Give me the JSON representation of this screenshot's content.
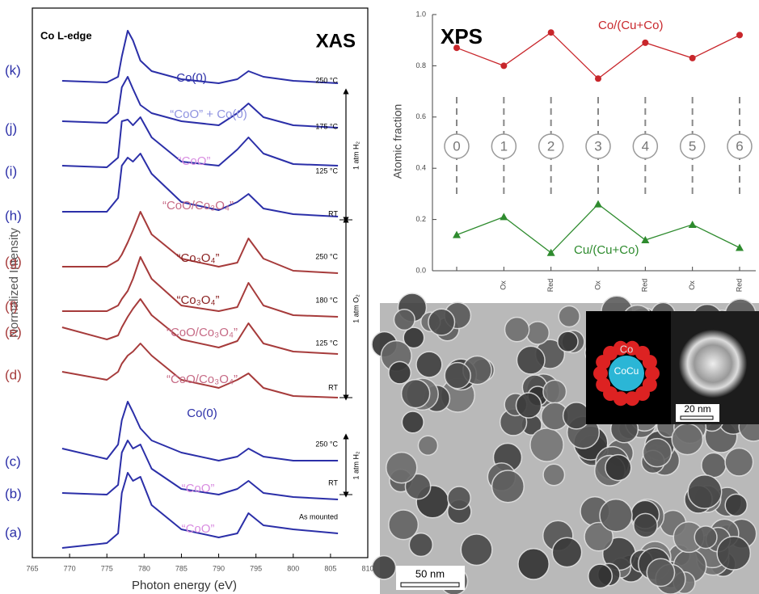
{
  "chart_data": [
    {
      "type": "line",
      "title": "XAS",
      "subtitle": "Co L-edge",
      "x_label": "Photon energy (eV)",
      "y_label": "Normalized Intensity",
      "xlim": [
        765,
        810
      ],
      "xticks": [
        765,
        770,
        775,
        780,
        785,
        790,
        795,
        800,
        805,
        810
      ],
      "ylim": [
        0,
        68
      ],
      "x": [
        769,
        775,
        776.5,
        777,
        777.8,
        778.5,
        779.5,
        781,
        785,
        790,
        792.5,
        794,
        796,
        800,
        806
      ],
      "environments": [
        "1 atm H₂",
        "1 atm O₂",
        "1 atm H₂"
      ],
      "series": [
        {
          "name": "(k)",
          "color": "#2b2fa8",
          "label": "Co(0)",
          "condition": "250 °C",
          "values": [
            59,
            58.8,
            59.5,
            62,
            65.2,
            64,
            61.5,
            60.2,
            59.2,
            58.7,
            59.2,
            60.2,
            59.5,
            59,
            58.7
          ]
        },
        {
          "name": "(j)",
          "color": "#2b2fa8",
          "label": "“CoO” + Co(0)",
          "condition": "175 °C",
          "values": [
            54,
            53.8,
            55,
            58.2,
            59.5,
            58,
            56,
            55,
            54,
            53.5,
            55,
            56.2,
            54.5,
            53.5,
            53.2
          ]
        },
        {
          "name": "(i)",
          "color": "#2b2fa8",
          "label": "“CoO”",
          "condition": "125 °C",
          "values": [
            48.5,
            48.3,
            49.5,
            54,
            54.2,
            53.5,
            54.5,
            52,
            49,
            48.5,
            50.5,
            52,
            50,
            48.7,
            48.5
          ]
        },
        {
          "name": "(h)",
          "color": "#2b2fa8",
          "label": "“CoO/Co₃O₄”",
          "condition": "RT",
          "values": [
            42.8,
            42.8,
            44.5,
            48.5,
            49.5,
            49,
            50,
            47.5,
            44,
            43,
            44,
            45,
            43.2,
            42.5,
            42.2
          ]
        },
        {
          "name": "(g)",
          "color": "#a63b3b",
          "label": "“Co₃O₄”",
          "condition": "250 °C",
          "values": [
            36,
            36,
            36.8,
            37.5,
            39,
            40.5,
            42.8,
            40,
            37,
            36,
            36.5,
            39.5,
            37,
            35.5,
            35.2
          ]
        },
        {
          "name": "(f)",
          "color": "#a63b3b",
          "label": "“Co₃O₄”",
          "condition": "180 °C",
          "values": [
            30.5,
            30.5,
            31.2,
            32,
            33,
            34.5,
            37.2,
            34.5,
            31.2,
            30.5,
            31,
            34,
            31.2,
            30,
            29.8
          ]
        },
        {
          "name": "(e)",
          "color": "#a63b3b",
          "label": "“CoO/Co₃O₄”",
          "condition": "125 °C",
          "values": [
            28.5,
            27,
            27.5,
            28.5,
            29.8,
            30.8,
            32,
            30,
            27,
            26,
            26.8,
            29,
            26.5,
            25.5,
            25.2
          ]
        },
        {
          "name": "(d)",
          "color": "#a63b3b",
          "label": "“CoO/Co₃O₄”",
          "condition": "RT",
          "values": [
            23,
            22,
            23,
            24,
            25,
            25.5,
            26.5,
            25,
            22,
            21,
            22,
            22.8,
            21,
            20,
            19.8
          ]
        },
        {
          "name": "(c)",
          "color": "#2b2fa8",
          "label": "Co(0)",
          "condition": "250 °C",
          "values": [
            13.5,
            12.2,
            14,
            17,
            19.3,
            18,
            16,
            14.5,
            13,
            12,
            12.5,
            13.5,
            12.5,
            12,
            12
          ]
        },
        {
          "name": "(b)",
          "color": "#2b2fa8",
          "label": "“CoO”",
          "condition": "RT",
          "values": [
            8,
            7.8,
            9,
            13,
            14.5,
            13.5,
            14,
            11,
            8.5,
            7.8,
            8.5,
            9.5,
            8,
            7.5,
            7.2
          ]
        },
        {
          "name": "(a)",
          "color": "#2b2fa8",
          "label": "“CoO”",
          "condition": "As mounted",
          "values": [
            1.2,
            1.8,
            3,
            8,
            10.5,
            9.5,
            10,
            6.5,
            3.5,
            2.5,
            3,
            5.5,
            4,
            3.5,
            3
          ]
        }
      ]
    },
    {
      "type": "line",
      "title": "XPS",
      "y_label": "Atomic fraction",
      "categories": [
        null,
        "Ox",
        "Red",
        "Ox",
        "Red",
        "Ox",
        "Red"
      ],
      "steps": [
        "0",
        "1",
        "2",
        "3",
        "4",
        "5",
        "6"
      ],
      "ylim": [
        0,
        1.0
      ],
      "yticks": [
        {
          "value": 0,
          "label": "0.0"
        },
        0.2,
        0.4,
        0.6,
        0.8,
        {
          "value": 1.0,
          "label": "1.0"
        }
      ],
      "series": [
        {
          "name": "Co/(Cu+Co)",
          "color": "#c8262b",
          "marker": "circle",
          "values": [
            0.87,
            0.8,
            0.93,
            0.75,
            0.89,
            0.83,
            0.92
          ]
        },
        {
          "name": "Cu/(Cu+Co)",
          "color": "#2e8b2e",
          "marker": "triangle",
          "values": [
            0.14,
            0.21,
            0.07,
            0.26,
            0.12,
            0.18,
            0.09
          ]
        }
      ]
    }
  ],
  "tem_image": {
    "scale_bar": "50 nm",
    "inset_scale_bar": "20 nm",
    "shell_label": "Co",
    "core_label": "CoCu"
  }
}
